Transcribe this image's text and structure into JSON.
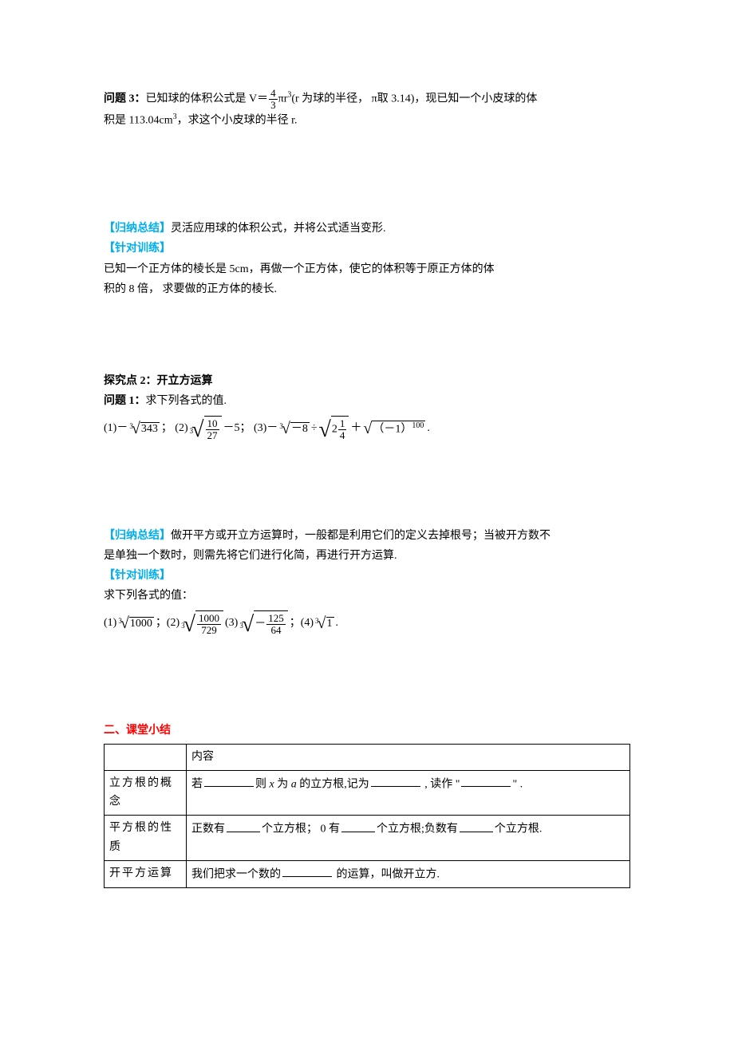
{
  "q3": {
    "label": "问题 3：",
    "pre": "已知球的体积公式是 V＝",
    "frac_num": "4",
    "frac_den": "3",
    "post1": "πr",
    "sup3": "3",
    "post2": "(r 为球的半径， π取 3.14)，现已知一个小皮球的体",
    "line2_pre": "积是 113.04cm",
    "line2_post": "，求这个小皮球的半径 r."
  },
  "summary1": {
    "label": "【归纳总结】",
    "text": "灵活应用球的体积公式，并将公式适当变形."
  },
  "train1": {
    "label": "【针对训练】",
    "line1": "已知一个正方体的棱长是 5cm，再做一个正方体，使它的体积等于原正方体的体",
    "line2": "积的 8 倍， 求要做的正方体的棱长."
  },
  "explore2": {
    "title": "探究点 2：开立方运算",
    "q1_label": "问题 1：",
    "q1_text": "求下列各式的值."
  },
  "expr1": {
    "p1": "(1)－",
    "idx": "3",
    "rad": "343",
    "p2": "；  (2)",
    "idx2": "3",
    "frac2_num": "10",
    "frac2_den": "27",
    "p3": "－5；  (3)－",
    "idx3": "3",
    "rad3": "－8",
    "p4": "÷",
    "frac4_pre": "2",
    "frac4_num": "1",
    "frac4_den": "4",
    "p5": "＋",
    "rad5_inner": "（－1）",
    "rad5_sup": "100",
    "p6": "."
  },
  "summary2": {
    "label": "【归纳总结】",
    "line1": "做开平方或开立方运算时，一般都是利用它们的定义去掉根号；当被开方数不",
    "line2": "是单独一个数时，则需先将它们进行化简，再进行开方运算."
  },
  "train2": {
    "label": "【针对训练】",
    "line1": "求下列各式的值："
  },
  "expr2": {
    "p1": "(1) ",
    "idx1": "3",
    "rad1": "1000",
    "p2": "；(2)   ",
    "idx2": "3",
    "frac2_num": "1000",
    "frac2_den": "729",
    "p3": "   (3)     ",
    "idx3": "3",
    "neg": "－",
    "frac3_num": "125",
    "frac3_den": "64",
    "p4": " ；(4)   ",
    "idx4": "3",
    "rad4": "1",
    "p5": " ."
  },
  "section2": {
    "title": "二、课堂小结"
  },
  "table": {
    "header_col2": "内容",
    "row1_col1a": "立方根的概",
    "row1_col1b": "念",
    "row1_pre": "若",
    "row1_mid1": "则 ",
    "row1_x": "x",
    "row1_mid2": " 为 ",
    "row1_a": "a",
    "row1_mid3": " 的立方根,记为",
    "row1_mid4": " , 读作 \"",
    "row1_end": "\"   .",
    "row2_col1a": "平方根的性",
    "row2_col1b": "质",
    "row2_pre": "正数有",
    "row2_mid1": "个立方根；  0 有",
    "row2_mid2": "个立方根;负数有",
    "row2_end": "个立方根.",
    "row3_col1": "开平方运算",
    "row3_pre": "我们把求一个数的",
    "row3_end": " 的运算，叫做开立方."
  }
}
